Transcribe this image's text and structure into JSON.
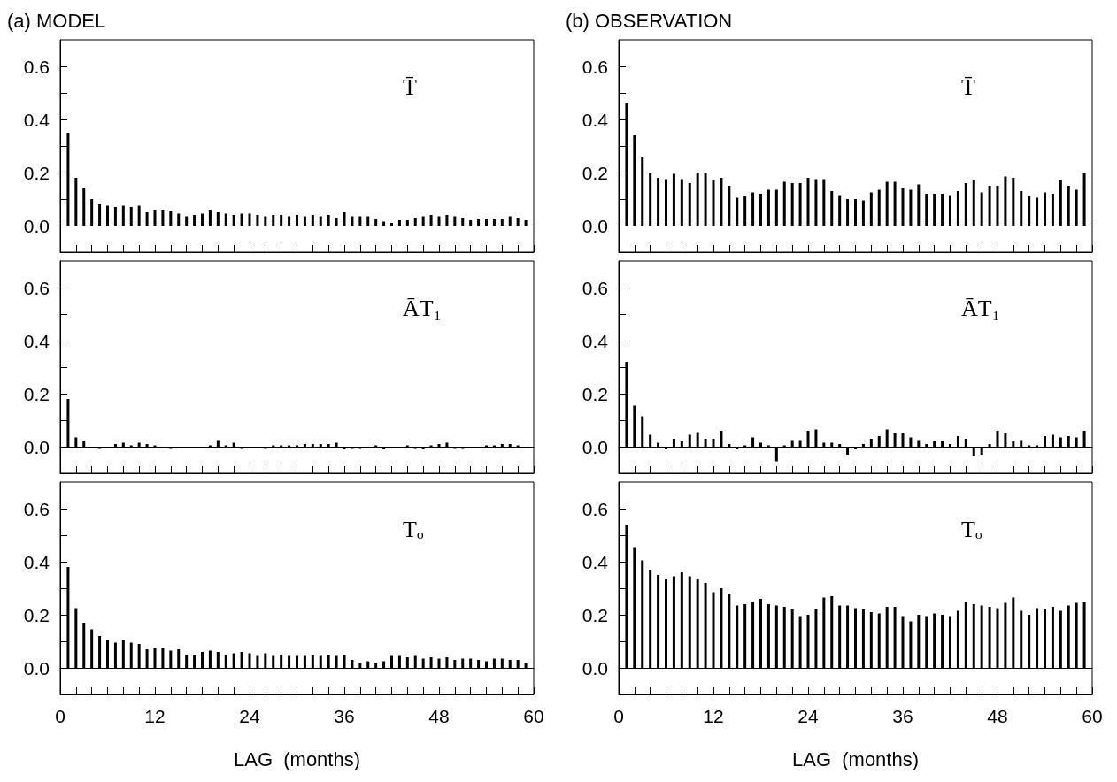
{
  "chart_data": [
    {
      "type": "bar",
      "title": "(a) MODEL",
      "annotations": [
        "T̄"
      ],
      "color": "#000000",
      "tick_labels": "y",
      "xlim": [
        0,
        60
      ],
      "ylim": [
        -0.1,
        0.7
      ],
      "xticks": [
        0,
        {
          "value": 2,
          "label": null
        },
        {
          "value": 4,
          "label": null
        },
        {
          "value": 6,
          "label": null
        },
        {
          "value": 8,
          "label": null
        },
        {
          "value": 10,
          "label": null
        },
        12,
        {
          "value": 14,
          "label": null
        },
        {
          "value": 16,
          "label": null
        },
        {
          "value": 18,
          "label": null
        },
        {
          "value": 20,
          "label": null
        },
        {
          "value": 22,
          "label": null
        },
        24,
        {
          "value": 26,
          "label": null
        },
        {
          "value": 28,
          "label": null
        },
        {
          "value": 30,
          "label": null
        },
        {
          "value": 32,
          "label": null
        },
        {
          "value": 34,
          "label": null
        },
        36,
        {
          "value": 38,
          "label": null
        },
        {
          "value": 40,
          "label": null
        },
        {
          "value": 42,
          "label": null
        },
        {
          "value": 44,
          "label": null
        },
        {
          "value": 46,
          "label": null
        },
        48,
        {
          "value": 50,
          "label": null
        },
        {
          "value": 52,
          "label": null
        },
        {
          "value": 54,
          "label": null
        },
        {
          "value": 56,
          "label": null
        },
        {
          "value": 58,
          "label": null
        },
        60
      ],
      "yticks": [
        {
          "value": -0.1,
          "label": null
        },
        {
          "value": 0,
          "label": "0.0"
        },
        {
          "value": 0.1,
          "label": null
        },
        0.2,
        {
          "value": 0.3,
          "label": null
        },
        0.4,
        {
          "value": 0.5,
          "label": null
        },
        0.6
      ],
      "x": [
        1,
        2,
        3,
        4,
        5,
        6,
        7,
        8,
        9,
        10,
        11,
        12,
        13,
        14,
        15,
        16,
        17,
        18,
        19,
        20,
        21,
        22,
        23,
        24,
        25,
        26,
        27,
        28,
        29,
        30,
        31,
        32,
        33,
        34,
        35,
        36,
        37,
        38,
        39,
        40,
        41,
        42,
        43,
        44,
        45,
        46,
        47,
        48,
        49,
        50,
        51,
        52,
        53,
        54,
        55,
        56,
        57,
        58,
        59
      ],
      "values": [
        0.35,
        0.18,
        0.14,
        0.1,
        0.08,
        0.075,
        0.07,
        0.075,
        0.07,
        0.075,
        0.05,
        0.06,
        0.06,
        0.055,
        0.045,
        0.035,
        0.04,
        0.045,
        0.06,
        0.05,
        0.045,
        0.04,
        0.045,
        0.045,
        0.04,
        0.035,
        0.04,
        0.04,
        0.035,
        0.04,
        0.035,
        0.04,
        0.035,
        0.04,
        0.03,
        0.05,
        0.035,
        0.035,
        0.035,
        0.025,
        0.015,
        0.01,
        0.02,
        0.02,
        0.03,
        0.035,
        0.04,
        0.035,
        0.04,
        0.035,
        0.03,
        0.02,
        0.025,
        0.025,
        0.025,
        0.025,
        0.035,
        0.03,
        0.02
      ]
    },
    {
      "type": "bar",
      "title": "(b) OBSERVATION",
      "annotations": [
        "T̄"
      ],
      "color": "#000000",
      "tick_labels": "y",
      "xlim": [
        0,
        60
      ],
      "ylim": [
        -0.1,
        0.7
      ],
      "xticks": [
        0,
        {
          "value": 2,
          "label": null
        },
        {
          "value": 4,
          "label": null
        },
        {
          "value": 6,
          "label": null
        },
        {
          "value": 8,
          "label": null
        },
        {
          "value": 10,
          "label": null
        },
        12,
        {
          "value": 14,
          "label": null
        },
        {
          "value": 16,
          "label": null
        },
        {
          "value": 18,
          "label": null
        },
        {
          "value": 20,
          "label": null
        },
        {
          "value": 22,
          "label": null
        },
        24,
        {
          "value": 26,
          "label": null
        },
        {
          "value": 28,
          "label": null
        },
        {
          "value": 30,
          "label": null
        },
        {
          "value": 32,
          "label": null
        },
        {
          "value": 34,
          "label": null
        },
        36,
        {
          "value": 38,
          "label": null
        },
        {
          "value": 40,
          "label": null
        },
        {
          "value": 42,
          "label": null
        },
        {
          "value": 44,
          "label": null
        },
        {
          "value": 46,
          "label": null
        },
        48,
        {
          "value": 50,
          "label": null
        },
        {
          "value": 52,
          "label": null
        },
        {
          "value": 54,
          "label": null
        },
        {
          "value": 56,
          "label": null
        },
        {
          "value": 58,
          "label": null
        },
        60
      ],
      "yticks": [
        {
          "value": -0.1,
          "label": null
        },
        {
          "value": 0,
          "label": "0.0"
        },
        {
          "value": 0.1,
          "label": null
        },
        0.2,
        {
          "value": 0.3,
          "label": null
        },
        0.4,
        {
          "value": 0.5,
          "label": null
        },
        0.6
      ],
      "x": [
        1,
        2,
        3,
        4,
        5,
        6,
        7,
        8,
        9,
        10,
        11,
        12,
        13,
        14,
        15,
        16,
        17,
        18,
        19,
        20,
        21,
        22,
        23,
        24,
        25,
        26,
        27,
        28,
        29,
        30,
        31,
        32,
        33,
        34,
        35,
        36,
        37,
        38,
        39,
        40,
        41,
        42,
        43,
        44,
        45,
        46,
        47,
        48,
        49,
        50,
        51,
        52,
        53,
        54,
        55,
        56,
        57,
        58,
        59
      ],
      "values": [
        0.46,
        0.34,
        0.26,
        0.2,
        0.18,
        0.175,
        0.195,
        0.175,
        0.16,
        0.2,
        0.2,
        0.17,
        0.18,
        0.15,
        0.105,
        0.11,
        0.125,
        0.12,
        0.135,
        0.135,
        0.165,
        0.16,
        0.16,
        0.18,
        0.175,
        0.175,
        0.13,
        0.115,
        0.1,
        0.1,
        0.095,
        0.125,
        0.135,
        0.165,
        0.165,
        0.14,
        0.135,
        0.155,
        0.12,
        0.12,
        0.12,
        0.115,
        0.13,
        0.16,
        0.17,
        0.125,
        0.15,
        0.15,
        0.185,
        0.18,
        0.13,
        0.11,
        0.105,
        0.125,
        0.12,
        0.17,
        0.15,
        0.135,
        0.2
      ]
    },
    {
      "type": "bar",
      "annotations": [
        "ĀT₁"
      ],
      "color": "#000000",
      "tick_labels": "y",
      "xlim": [
        0,
        60
      ],
      "ylim": [
        -0.1,
        0.7
      ],
      "xticks": [
        0,
        {
          "value": 2,
          "label": null
        },
        {
          "value": 4,
          "label": null
        },
        {
          "value": 6,
          "label": null
        },
        {
          "value": 8,
          "label": null
        },
        {
          "value": 10,
          "label": null
        },
        12,
        {
          "value": 14,
          "label": null
        },
        {
          "value": 16,
          "label": null
        },
        {
          "value": 18,
          "label": null
        },
        {
          "value": 20,
          "label": null
        },
        {
          "value": 22,
          "label": null
        },
        24,
        {
          "value": 26,
          "label": null
        },
        {
          "value": 28,
          "label": null
        },
        {
          "value": 30,
          "label": null
        },
        {
          "value": 32,
          "label": null
        },
        {
          "value": 34,
          "label": null
        },
        36,
        {
          "value": 38,
          "label": null
        },
        {
          "value": 40,
          "label": null
        },
        {
          "value": 42,
          "label": null
        },
        {
          "value": 44,
          "label": null
        },
        {
          "value": 46,
          "label": null
        },
        48,
        {
          "value": 50,
          "label": null
        },
        {
          "value": 52,
          "label": null
        },
        {
          "value": 54,
          "label": null
        },
        {
          "value": 56,
          "label": null
        },
        {
          "value": 58,
          "label": null
        },
        60
      ],
      "yticks": [
        {
          "value": -0.1,
          "label": null
        },
        {
          "value": 0,
          "label": "0.0"
        },
        {
          "value": 0.1,
          "label": null
        },
        0.2,
        {
          "value": 0.3,
          "label": null
        },
        0.4,
        {
          "value": 0.5,
          "label": null
        },
        0.6
      ],
      "x": [
        1,
        2,
        3,
        4,
        5,
        6,
        7,
        8,
        9,
        10,
        11,
        12,
        13,
        14,
        15,
        16,
        17,
        18,
        19,
        20,
        21,
        22,
        23,
        24,
        25,
        26,
        27,
        28,
        29,
        30,
        31,
        32,
        33,
        34,
        35,
        36,
        37,
        38,
        39,
        40,
        41,
        42,
        43,
        44,
        45,
        46,
        47,
        48,
        49,
        50,
        51,
        52,
        53,
        54,
        55,
        56,
        57,
        58,
        59
      ],
      "values": [
        0.18,
        0.035,
        0.02,
        0.0,
        -0.005,
        0.0,
        0.01,
        0.015,
        0.005,
        0.015,
        0.01,
        0.005,
        0.0,
        -0.005,
        0.0,
        0.0,
        0.0,
        0.0,
        0.005,
        0.025,
        0.005,
        0.015,
        -0.005,
        0.0,
        0.0,
        -0.005,
        0.005,
        0.005,
        0.005,
        0.005,
        0.01,
        0.01,
        0.01,
        0.01,
        0.015,
        -0.01,
        -0.005,
        -0.005,
        0.0,
        0.005,
        -0.01,
        0.0,
        0.0,
        0.005,
        -0.005,
        -0.01,
        0.005,
        0.01,
        0.015,
        -0.005,
        -0.005,
        0.0,
        0.0,
        0.005,
        0.005,
        0.01,
        0.01,
        0.005,
        0.0
      ]
    },
    {
      "type": "bar",
      "annotations": [
        "ĀT₁"
      ],
      "color": "#000000",
      "tick_labels": "y",
      "xlim": [
        0,
        60
      ],
      "ylim": [
        -0.1,
        0.7
      ],
      "xticks": [
        0,
        {
          "value": 2,
          "label": null
        },
        {
          "value": 4,
          "label": null
        },
        {
          "value": 6,
          "label": null
        },
        {
          "value": 8,
          "label": null
        },
        {
          "value": 10,
          "label": null
        },
        12,
        {
          "value": 14,
          "label": null
        },
        {
          "value": 16,
          "label": null
        },
        {
          "value": 18,
          "label": null
        },
        {
          "value": 20,
          "label": null
        },
        {
          "value": 22,
          "label": null
        },
        24,
        {
          "value": 26,
          "label": null
        },
        {
          "value": 28,
          "label": null
        },
        {
          "value": 30,
          "label": null
        },
        {
          "value": 32,
          "label": null
        },
        {
          "value": 34,
          "label": null
        },
        36,
        {
          "value": 38,
          "label": null
        },
        {
          "value": 40,
          "label": null
        },
        {
          "value": 42,
          "label": null
        },
        {
          "value": 44,
          "label": null
        },
        {
          "value": 46,
          "label": null
        },
        48,
        {
          "value": 50,
          "label": null
        },
        {
          "value": 52,
          "label": null
        },
        {
          "value": 54,
          "label": null
        },
        {
          "value": 56,
          "label": null
        },
        {
          "value": 58,
          "label": null
        },
        60
      ],
      "yticks": [
        {
          "value": -0.1,
          "label": null
        },
        {
          "value": 0,
          "label": "0.0"
        },
        {
          "value": 0.1,
          "label": null
        },
        0.2,
        {
          "value": 0.3,
          "label": null
        },
        0.4,
        {
          "value": 0.5,
          "label": null
        },
        0.6
      ],
      "x": [
        1,
        2,
        3,
        4,
        5,
        6,
        7,
        8,
        9,
        10,
        11,
        12,
        13,
        14,
        15,
        16,
        17,
        18,
        19,
        20,
        21,
        22,
        23,
        24,
        25,
        26,
        27,
        28,
        29,
        30,
        31,
        32,
        33,
        34,
        35,
        36,
        37,
        38,
        39,
        40,
        41,
        42,
        43,
        44,
        45,
        46,
        47,
        48,
        49,
        50,
        51,
        52,
        53,
        54,
        55,
        56,
        57,
        58,
        59
      ],
      "values": [
        0.32,
        0.155,
        0.115,
        0.045,
        0.015,
        -0.01,
        0.03,
        0.02,
        0.045,
        0.055,
        0.03,
        0.03,
        0.06,
        0.01,
        -0.01,
        0.005,
        0.035,
        0.015,
        0.005,
        -0.055,
        0.005,
        0.025,
        0.025,
        0.06,
        0.065,
        0.015,
        0.015,
        0.01,
        -0.03,
        -0.01,
        0.01,
        0.03,
        0.04,
        0.065,
        0.05,
        0.05,
        0.035,
        0.025,
        0.01,
        0.02,
        0.02,
        0.01,
        0.04,
        0.03,
        -0.035,
        -0.03,
        0.01,
        0.06,
        0.05,
        0.02,
        0.025,
        0.005,
        0.005,
        0.04,
        0.045,
        0.035,
        0.04,
        0.035,
        0.06
      ]
    },
    {
      "type": "bar",
      "annotations": [
        "Tₒ"
      ],
      "color": "#000000",
      "xlabel": "LAG  (months)",
      "xlim": [
        0,
        60
      ],
      "ylim": [
        -0.1,
        0.7
      ],
      "xticks": [
        0,
        {
          "value": 2,
          "label": null
        },
        {
          "value": 4,
          "label": null
        },
        {
          "value": 6,
          "label": null
        },
        {
          "value": 8,
          "label": null
        },
        {
          "value": 10,
          "label": null
        },
        12,
        {
          "value": 14,
          "label": null
        },
        {
          "value": 16,
          "label": null
        },
        {
          "value": 18,
          "label": null
        },
        {
          "value": 20,
          "label": null
        },
        {
          "value": 22,
          "label": null
        },
        24,
        {
          "value": 26,
          "label": null
        },
        {
          "value": 28,
          "label": null
        },
        {
          "value": 30,
          "label": null
        },
        {
          "value": 32,
          "label": null
        },
        {
          "value": 34,
          "label": null
        },
        36,
        {
          "value": 38,
          "label": null
        },
        {
          "value": 40,
          "label": null
        },
        {
          "value": 42,
          "label": null
        },
        {
          "value": 44,
          "label": null
        },
        {
          "value": 46,
          "label": null
        },
        48,
        {
          "value": 50,
          "label": null
        },
        {
          "value": 52,
          "label": null
        },
        {
          "value": 54,
          "label": null
        },
        {
          "value": 56,
          "label": null
        },
        {
          "value": 58,
          "label": null
        },
        60
      ],
      "yticks": [
        {
          "value": -0.1,
          "label": null
        },
        {
          "value": 0,
          "label": "0.0"
        },
        {
          "value": 0.1,
          "label": null
        },
        0.2,
        {
          "value": 0.3,
          "label": null
        },
        0.4,
        {
          "value": 0.5,
          "label": null
        },
        0.6
      ],
      "x": [
        1,
        2,
        3,
        4,
        5,
        6,
        7,
        8,
        9,
        10,
        11,
        12,
        13,
        14,
        15,
        16,
        17,
        18,
        19,
        20,
        21,
        22,
        23,
        24,
        25,
        26,
        27,
        28,
        29,
        30,
        31,
        32,
        33,
        34,
        35,
        36,
        37,
        38,
        39,
        40,
        41,
        42,
        43,
        44,
        45,
        46,
        47,
        48,
        49,
        50,
        51,
        52,
        53,
        54,
        55,
        56,
        57,
        58,
        59
      ],
      "values": [
        0.38,
        0.225,
        0.17,
        0.145,
        0.12,
        0.105,
        0.095,
        0.105,
        0.095,
        0.09,
        0.07,
        0.075,
        0.075,
        0.065,
        0.07,
        0.05,
        0.05,
        0.06,
        0.065,
        0.06,
        0.05,
        0.055,
        0.06,
        0.055,
        0.045,
        0.055,
        0.045,
        0.05,
        0.045,
        0.045,
        0.045,
        0.05,
        0.045,
        0.05,
        0.045,
        0.05,
        0.03,
        0.02,
        0.025,
        0.02,
        0.025,
        0.045,
        0.045,
        0.04,
        0.045,
        0.035,
        0.04,
        0.035,
        0.04,
        0.03,
        0.035,
        0.035,
        0.03,
        0.025,
        0.035,
        0.035,
        0.03,
        0.03,
        0.02
      ]
    },
    {
      "type": "bar",
      "annotations": [
        "Tₒ"
      ],
      "color": "#000000",
      "xlabel": "LAG  (months)",
      "xlim": [
        0,
        60
      ],
      "ylim": [
        -0.1,
        0.7
      ],
      "xticks": [
        0,
        {
          "value": 2,
          "label": null
        },
        {
          "value": 4,
          "label": null
        },
        {
          "value": 6,
          "label": null
        },
        {
          "value": 8,
          "label": null
        },
        {
          "value": 10,
          "label": null
        },
        12,
        {
          "value": 14,
          "label": null
        },
        {
          "value": 16,
          "label": null
        },
        {
          "value": 18,
          "label": null
        },
        {
          "value": 20,
          "label": null
        },
        {
          "value": 22,
          "label": null
        },
        24,
        {
          "value": 26,
          "label": null
        },
        {
          "value": 28,
          "label": null
        },
        {
          "value": 30,
          "label": null
        },
        {
          "value": 32,
          "label": null
        },
        {
          "value": 34,
          "label": null
        },
        36,
        {
          "value": 38,
          "label": null
        },
        {
          "value": 40,
          "label": null
        },
        {
          "value": 42,
          "label": null
        },
        {
          "value": 44,
          "label": null
        },
        {
          "value": 46,
          "label": null
        },
        48,
        {
          "value": 50,
          "label": null
        },
        {
          "value": 52,
          "label": null
        },
        {
          "value": 54,
          "label": null
        },
        {
          "value": 56,
          "label": null
        },
        {
          "value": 58,
          "label": null
        },
        60
      ],
      "yticks": [
        {
          "value": -0.1,
          "label": null
        },
        {
          "value": 0,
          "label": "0.0"
        },
        {
          "value": 0.1,
          "label": null
        },
        0.2,
        {
          "value": 0.3,
          "label": null
        },
        0.4,
        {
          "value": 0.5,
          "label": null
        },
        0.6
      ],
      "x": [
        1,
        2,
        3,
        4,
        5,
        6,
        7,
        8,
        9,
        10,
        11,
        12,
        13,
        14,
        15,
        16,
        17,
        18,
        19,
        20,
        21,
        22,
        23,
        24,
        25,
        26,
        27,
        28,
        29,
        30,
        31,
        32,
        33,
        34,
        35,
        36,
        37,
        38,
        39,
        40,
        41,
        42,
        43,
        44,
        45,
        46,
        47,
        48,
        49,
        50,
        51,
        52,
        53,
        54,
        55,
        56,
        57,
        58,
        59
      ],
      "values": [
        0.54,
        0.455,
        0.405,
        0.37,
        0.35,
        0.335,
        0.345,
        0.36,
        0.345,
        0.335,
        0.32,
        0.285,
        0.3,
        0.28,
        0.235,
        0.24,
        0.25,
        0.26,
        0.24,
        0.235,
        0.23,
        0.22,
        0.195,
        0.2,
        0.22,
        0.265,
        0.27,
        0.235,
        0.235,
        0.225,
        0.22,
        0.21,
        0.205,
        0.23,
        0.23,
        0.195,
        0.175,
        0.2,
        0.195,
        0.205,
        0.2,
        0.195,
        0.215,
        0.25,
        0.24,
        0.235,
        0.23,
        0.225,
        0.245,
        0.265,
        0.215,
        0.2,
        0.225,
        0.22,
        0.23,
        0.215,
        0.235,
        0.245,
        0.25
      ]
    }
  ]
}
